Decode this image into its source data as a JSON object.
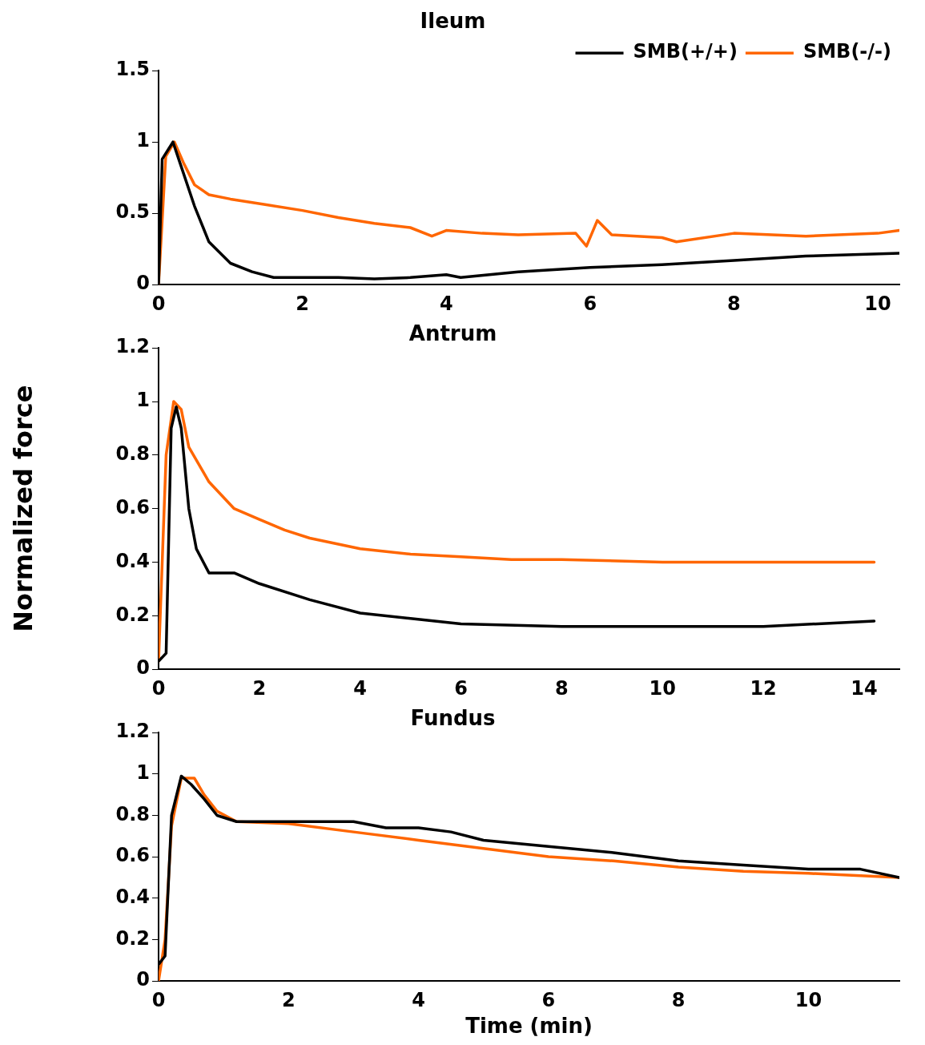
{
  "chart_data": [
    {
      "type": "line",
      "title": "Ileum",
      "xlim": [
        0,
        10.3
      ],
      "xticks": [
        0,
        2,
        4,
        6,
        8,
        10
      ],
      "ylim": [
        0,
        1.5
      ],
      "yticks": [
        0,
        0.5,
        1,
        1.5
      ],
      "grid": false,
      "legend": "top right",
      "marker": "none",
      "line_style": "solid",
      "series": [
        {
          "name": "SMB(+/+)",
          "color": "#000000",
          "x": [
            0,
            0.05,
            0.2,
            0.3,
            0.5,
            0.7,
            1,
            1.3,
            1.6,
            2,
            2.5,
            3,
            3.5,
            4,
            4.2,
            5,
            6,
            7,
            8,
            9,
            10.3
          ],
          "values": [
            0,
            0.88,
            1,
            0.85,
            0.55,
            0.3,
            0.15,
            0.09,
            0.05,
            0.05,
            0.05,
            0.04,
            0.05,
            0.07,
            0.05,
            0.09,
            0.12,
            0.14,
            0.17,
            0.2,
            0.22
          ]
        },
        {
          "name": "SMB(-/-)",
          "color": "#ff6600",
          "x": [
            0,
            0.1,
            0.22,
            0.35,
            0.5,
            0.7,
            1,
            1.5,
            2,
            2.5,
            3,
            3.5,
            3.8,
            4,
            4.5,
            5,
            5.8,
            5.95,
            6.1,
            6.3,
            7,
            7.2,
            8,
            9,
            10,
            10.3
          ],
          "values": [
            0,
            0.9,
            1,
            0.85,
            0.7,
            0.63,
            0.6,
            0.56,
            0.52,
            0.47,
            0.43,
            0.4,
            0.34,
            0.38,
            0.36,
            0.35,
            0.36,
            0.27,
            0.45,
            0.35,
            0.33,
            0.3,
            0.36,
            0.34,
            0.36,
            0.38
          ]
        }
      ]
    },
    {
      "type": "line",
      "title": "Antrum",
      "ylabel": "Normalized force",
      "xlim": [
        0,
        14.7
      ],
      "xticks": [
        0,
        2,
        4,
        6,
        8,
        10,
        12,
        14
      ],
      "ylim": [
        0,
        1.2
      ],
      "yticks": [
        0,
        0.2,
        0.4,
        0.6,
        0.8,
        1,
        1.2
      ],
      "grid": false,
      "legend": false,
      "marker": "none",
      "line_style": "solid",
      "series": [
        {
          "color": "#000000",
          "x": [
            0,
            0.15,
            0.25,
            0.35,
            0.45,
            0.6,
            0.75,
            1,
            1.5,
            2,
            3,
            4,
            5,
            6,
            8,
            10,
            12,
            14.2
          ],
          "values": [
            0.03,
            0.06,
            0.9,
            0.98,
            0.9,
            0.6,
            0.45,
            0.36,
            0.36,
            0.32,
            0.26,
            0.21,
            0.19,
            0.17,
            0.16,
            0.16,
            0.16,
            0.18
          ]
        },
        {
          "color": "#ff6600",
          "x": [
            0,
            0.15,
            0.3,
            0.45,
            0.6,
            1,
            1.5,
            2,
            2.5,
            3,
            4,
            5,
            6,
            7,
            8,
            10,
            12,
            14.2
          ],
          "values": [
            0.03,
            0.8,
            1,
            0.97,
            0.83,
            0.7,
            0.6,
            0.56,
            0.52,
            0.49,
            0.45,
            0.43,
            0.42,
            0.41,
            0.41,
            0.4,
            0.4,
            0.4
          ]
        }
      ]
    },
    {
      "type": "line",
      "title": "Fundus",
      "xlabel": "Time (min)",
      "xlim": [
        0,
        11.4
      ],
      "xticks": [
        0,
        2,
        4,
        6,
        8,
        10
      ],
      "ylim": [
        0,
        1.2
      ],
      "yticks": [
        0,
        0.2,
        0.4,
        0.6,
        0.8,
        1,
        1.2
      ],
      "grid": false,
      "legend": false,
      "marker": "none",
      "line_style": "solid",
      "series": [
        {
          "color": "#000000",
          "x": [
            0,
            0.1,
            0.2,
            0.35,
            0.5,
            0.7,
            0.9,
            1.2,
            2,
            3,
            3.5,
            4,
            4.5,
            5,
            6,
            7,
            8,
            9,
            10,
            10.8,
            11.4
          ],
          "values": [
            0.08,
            0.12,
            0.8,
            0.99,
            0.95,
            0.88,
            0.8,
            0.77,
            0.77,
            0.77,
            0.74,
            0.74,
            0.72,
            0.68,
            0.65,
            0.62,
            0.58,
            0.56,
            0.54,
            0.54,
            0.5
          ]
        },
        {
          "color": "#ff6600",
          "x": [
            0,
            0.1,
            0.2,
            0.35,
            0.55,
            0.7,
            0.9,
            1.2,
            2,
            3,
            4,
            5,
            6,
            7,
            8,
            9,
            10,
            11.4
          ],
          "values": [
            0,
            0.2,
            0.75,
            0.98,
            0.98,
            0.9,
            0.82,
            0.77,
            0.76,
            0.72,
            0.68,
            0.64,
            0.6,
            0.58,
            0.55,
            0.53,
            0.52,
            0.5
          ]
        }
      ]
    }
  ]
}
